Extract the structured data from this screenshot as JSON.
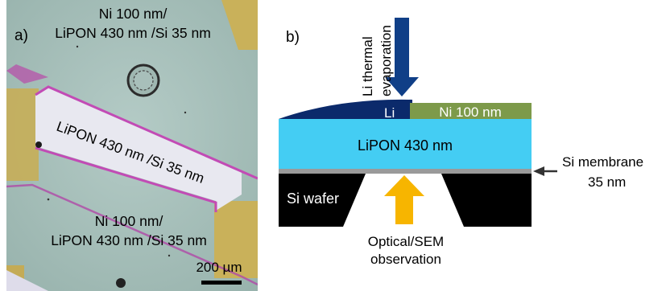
{
  "panel_a": {
    "label": "a)",
    "top_region_line1": "Ni 100 nm/",
    "top_region_line2": "LiPON 430 nm /Si 35 nm",
    "stripe_label": "LiPON 430 nm /Si 35 nm",
    "bottom_region_line1": "Ni 100 nm/",
    "bottom_region_line2": "LiPON 430 nm /Si 35 nm",
    "scale_bar": "200 µm"
  },
  "panel_b": {
    "label": "b)",
    "evaporation_line1": "Li thermal",
    "evaporation_line2": "evaporation",
    "li_label": "Li",
    "ni_label": "Ni 100 nm",
    "lipon_label": "LiPON 430 nm",
    "membrane_line1": "Si  membrane",
    "membrane_line2": "35 nm",
    "wafer_label": "Si wafer",
    "observation_line1": "Optical/SEM",
    "observation_line2": "observation"
  },
  "colors": {
    "micrograph_bg": "#a9c2bd",
    "stripe": "#e6e6ef",
    "stripe_edge": "#c24bb5",
    "gold_pad": "#c9b15a",
    "lithium": "#0b2a6b",
    "nickel": "#7d9a4a",
    "lipon": "#44cdf3",
    "membrane": "#9a9a9a",
    "wafer": "#000000",
    "arrow_evaporation": "#103f87",
    "arrow_observation": "#f7b500"
  }
}
